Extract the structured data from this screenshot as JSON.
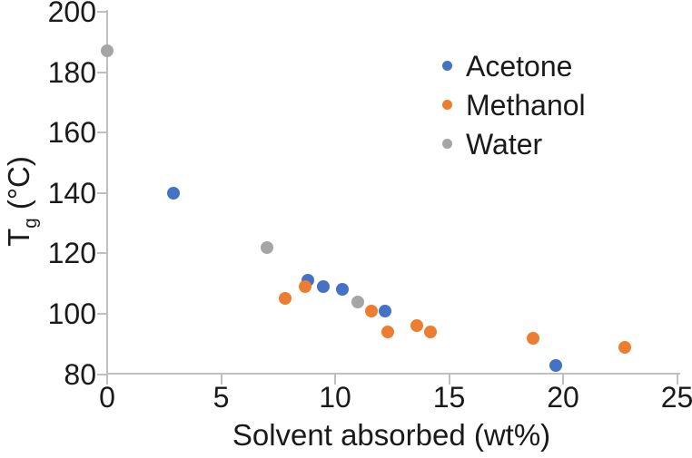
{
  "chart_data": {
    "type": "scatter",
    "title": "",
    "xlabel": "Solvent absorbed (wt%)",
    "ylabel": "Tg (°C)",
    "ylabel_parts": {
      "main": "T",
      "sub": "g",
      "unit": " (°C)"
    },
    "xlim": [
      0,
      25
    ],
    "ylim": [
      80,
      200
    ],
    "x_ticks": [
      "0",
      "5",
      "10",
      "15",
      "20",
      "25"
    ],
    "x_tick_values": [
      0,
      5,
      10,
      15,
      20,
      25
    ],
    "y_ticks": [
      "80",
      "100",
      "120",
      "140",
      "160",
      "180",
      "200"
    ],
    "y_tick_values": [
      80,
      100,
      120,
      140,
      160,
      180,
      200
    ],
    "grid": false,
    "legend_position": "inside-upper-right",
    "axis_color": "#bfbfbf",
    "text_color": "#1a1a1a",
    "series": [
      {
        "name": "Acetone",
        "color": "#4472C4",
        "points": [
          [
            2.9,
            140
          ],
          [
            8.8,
            111
          ],
          [
            9.5,
            109
          ],
          [
            10.3,
            108
          ],
          [
            12.2,
            101
          ],
          [
            19.7,
            83
          ]
        ]
      },
      {
        "name": "Methanol",
        "color": "#ED7D31",
        "points": [
          [
            7.8,
            105
          ],
          [
            8.7,
            109
          ],
          [
            11.6,
            101
          ],
          [
            12.3,
            94
          ],
          [
            13.6,
            96
          ],
          [
            14.2,
            94
          ],
          [
            18.7,
            92
          ],
          [
            22.7,
            89
          ]
        ]
      },
      {
        "name": "Water",
        "color": "#A5A5A5",
        "points": [
          [
            0,
            187
          ],
          [
            7,
            122
          ],
          [
            11,
            104
          ]
        ]
      }
    ]
  }
}
